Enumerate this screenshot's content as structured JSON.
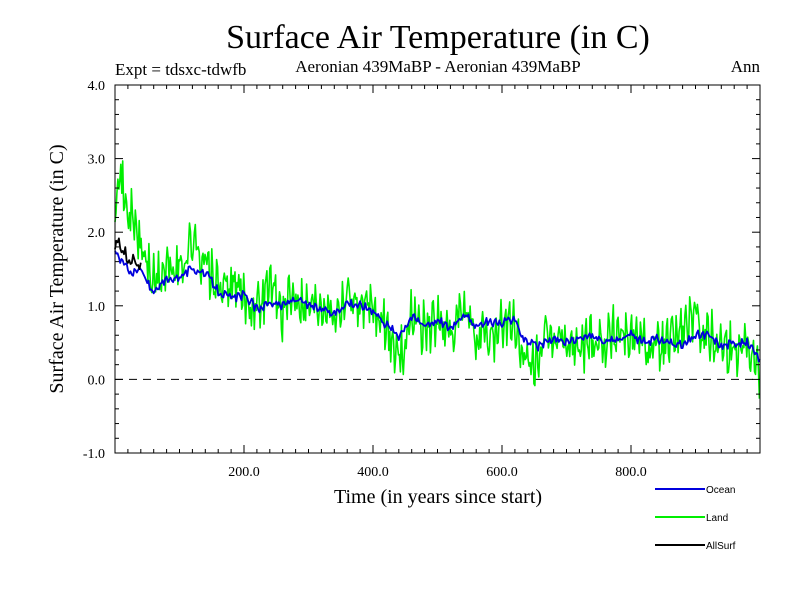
{
  "chart_data": {
    "type": "line",
    "title": "Surface Air Temperature (in C)",
    "subtitle_left": "Expt = tdsxc-tdwfb",
    "subtitle_center": "Aeronian 439MaBP - Aeronian 439MaBP",
    "subtitle_right": "Ann",
    "xlabel": "Time (in years since start)",
    "ylabel": "Surface Air Temperature (in C)",
    "xlim": [
      0,
      1000
    ],
    "ylim": [
      -1.0,
      4.0
    ],
    "x_ticks": [
      200,
      400,
      600,
      800
    ],
    "x_tick_labels": [
      "200.0",
      "400.0",
      "600.0",
      "800.0"
    ],
    "y_ticks": [
      -1.0,
      0.0,
      1.0,
      2.0,
      3.0,
      4.0
    ],
    "y_tick_labels": [
      "-1.0",
      "0.0",
      "1.0",
      "2.0",
      "3.0",
      "4.0"
    ],
    "reference_line": 0.0,
    "series": [
      {
        "name": "Land",
        "color": "#00ee00",
        "x": [
          0,
          5,
          10,
          15,
          20,
          30,
          40,
          50,
          60,
          80,
          100,
          120,
          140,
          160,
          180,
          200,
          220,
          240,
          260,
          280,
          300,
          320,
          340,
          360,
          380,
          400,
          420,
          440,
          450,
          460,
          480,
          500,
          520,
          540,
          560,
          580,
          600,
          620,
          640,
          660,
          680,
          700,
          720,
          740,
          760,
          780,
          800,
          820,
          840,
          860,
          880,
          900,
          920,
          940,
          960,
          980,
          1000
        ],
        "values": [
          2.5,
          2.9,
          2.7,
          2.4,
          2.3,
          2.1,
          1.8,
          1.6,
          1.3,
          1.5,
          1.5,
          1.9,
          1.6,
          1.2,
          1.3,
          1.1,
          1.0,
          1.3,
          0.9,
          1.2,
          1.0,
          1.1,
          0.9,
          1.2,
          1.0,
          0.9,
          0.7,
          0.3,
          0.5,
          0.9,
          0.7,
          0.8,
          0.6,
          0.9,
          0.6,
          0.5,
          0.8,
          0.7,
          0.1,
          0.4,
          0.6,
          0.5,
          0.4,
          0.6,
          0.5,
          0.7,
          0.6,
          0.5,
          0.4,
          0.5,
          0.7,
          0.8,
          0.6,
          0.5,
          0.4,
          0.6,
          0.1
        ]
      },
      {
        "name": "Ocean",
        "color": "#0000dd",
        "x": [
          0,
          10,
          20,
          30,
          40,
          50,
          60,
          80,
          100,
          120,
          140,
          160,
          180,
          200,
          220,
          240,
          260,
          280,
          300,
          320,
          340,
          360,
          380,
          400,
          420,
          440,
          460,
          480,
          500,
          520,
          540,
          560,
          580,
          600,
          620,
          630,
          640,
          660,
          680,
          700,
          720,
          740,
          760,
          780,
          800,
          820,
          840,
          860,
          880,
          900,
          920,
          940,
          960,
          980,
          1000
        ],
        "values": [
          1.75,
          1.6,
          1.5,
          1.45,
          1.5,
          1.3,
          1.2,
          1.35,
          1.4,
          1.5,
          1.45,
          1.2,
          1.1,
          1.15,
          0.95,
          1.05,
          1.0,
          1.1,
          1.0,
          0.95,
          0.9,
          1.05,
          1.0,
          0.95,
          0.75,
          0.6,
          0.85,
          0.75,
          0.8,
          0.7,
          0.9,
          0.7,
          0.8,
          0.75,
          0.85,
          0.6,
          0.5,
          0.45,
          0.55,
          0.5,
          0.55,
          0.6,
          0.5,
          0.55,
          0.6,
          0.5,
          0.55,
          0.5,
          0.45,
          0.6,
          0.6,
          0.45,
          0.5,
          0.5,
          0.25
        ]
      },
      {
        "name": "AllSurf",
        "color": "#000000",
        "x": [
          0,
          5,
          10,
          15,
          20,
          25,
          30,
          35,
          40
        ],
        "values": [
          1.8,
          1.9,
          1.7,
          1.75,
          1.6,
          1.55,
          1.65,
          1.5,
          1.55
        ]
      }
    ],
    "legend": {
      "placement": "bottom-right",
      "entries": [
        "Ocean",
        "Land",
        "AllSurf"
      ]
    }
  }
}
